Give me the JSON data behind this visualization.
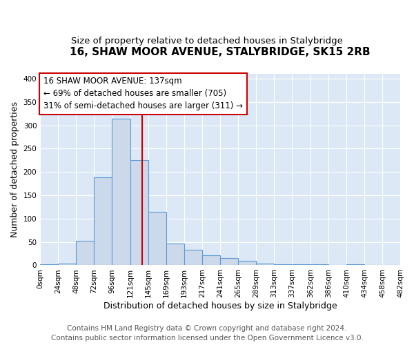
{
  "title": "16, SHAW MOOR AVENUE, STALYBRIDGE, SK15 2RB",
  "subtitle": "Size of property relative to detached houses in Stalybridge",
  "xlabel": "Distribution of detached houses by size in Stalybridge",
  "ylabel": "Number of detached properties",
  "bin_edges": [
    0,
    24,
    48,
    72,
    96,
    121,
    145,
    169,
    193,
    217,
    241,
    265,
    289,
    313,
    337,
    362,
    386,
    410,
    434,
    458,
    482
  ],
  "bar_heights": [
    2,
    4,
    53,
    189,
    315,
    226,
    114,
    46,
    33,
    21,
    16,
    9,
    3,
    2,
    2,
    2,
    0,
    2,
    1,
    1
  ],
  "bar_color": "#ccd9ea",
  "bar_edge_color": "#5b9bd5",
  "reference_line_x": 137,
  "reference_line_color": "#cc0000",
  "annotation_text": "16 SHAW MOOR AVENUE: 137sqm\n← 69% of detached houses are smaller (705)\n31% of semi-detached houses are larger (311) →",
  "annotation_box_color": "#ffffff",
  "annotation_box_edge_color": "#cc0000",
  "ylim": [
    0,
    410
  ],
  "yticks": [
    0,
    50,
    100,
    150,
    200,
    250,
    300,
    350,
    400
  ],
  "tick_labels": [
    "0sqm",
    "24sqm",
    "48sqm",
    "72sqm",
    "96sqm",
    "121sqm",
    "145sqm",
    "169sqm",
    "193sqm",
    "217sqm",
    "241sqm",
    "265sqm",
    "289sqm",
    "313sqm",
    "337sqm",
    "362sqm",
    "386sqm",
    "410sqm",
    "434sqm",
    "458sqm",
    "482sqm"
  ],
  "footer_line1": "Contains HM Land Registry data © Crown copyright and database right 2024.",
  "footer_line2": "Contains public sector information licensed under the Open Government Licence v3.0.",
  "bg_color": "#ffffff",
  "plot_bg_color": "#dce8f5",
  "grid_color": "#ffffff",
  "title_fontsize": 11,
  "subtitle_fontsize": 9.5,
  "axis_label_fontsize": 9,
  "tick_fontsize": 7.5,
  "annotation_fontsize": 8.5,
  "footer_fontsize": 7.5
}
